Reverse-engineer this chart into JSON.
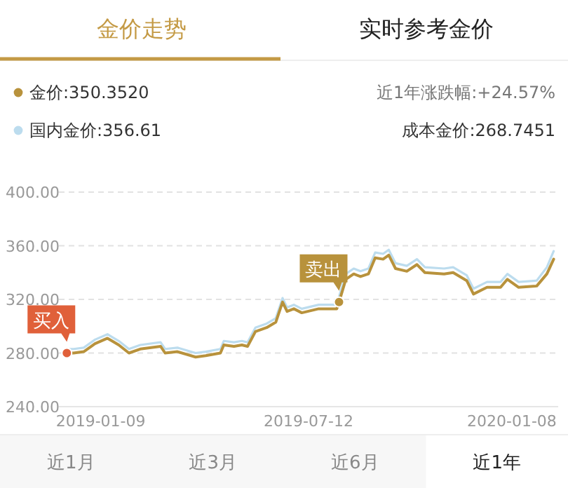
{
  "chart_data": {
    "type": "line",
    "x": [
      "2018-12-10",
      "2018-12-16",
      "2018-12-25",
      "2019-01-04",
      "2019-01-15",
      "2019-01-19",
      "2019-01-25",
      "2019-02-03",
      "2019-02-13",
      "2019-03-03",
      "2019-03-07",
      "2019-03-18",
      "2019-04-03",
      "2019-04-12",
      "2019-04-25",
      "2019-04-28",
      "2019-05-07",
      "2019-05-14",
      "2019-05-19",
      "2019-05-26",
      "2019-06-05",
      "2019-06-13",
      "2019-06-17",
      "2019-06-19",
      "2019-06-23",
      "2019-06-29",
      "2019-07-06",
      "2019-07-21",
      "2019-07-28",
      "2019-08-06",
      "2019-08-08",
      "2019-08-14",
      "2019-08-21",
      "2019-08-27",
      "2019-09-03",
      "2019-09-09",
      "2019-09-16",
      "2019-09-21",
      "2019-09-27",
      "2019-10-07",
      "2019-10-16",
      "2019-10-23",
      "2019-11-09",
      "2019-11-17",
      "2019-11-29",
      "2019-12-05",
      "2019-12-17",
      "2019-12-29",
      "2020-01-04",
      "2020-01-14",
      "2020-01-30",
      "2020-02-08",
      "2020-02-14"
    ],
    "series": [
      {
        "name": "国内金价:356.61",
        "color": "#bcdcee",
        "values": [
          283,
          283,
          284,
          290,
          294,
          292,
          289,
          283,
          286,
          288,
          283,
          284,
          280,
          281,
          283,
          289,
          288,
          289,
          288,
          299,
          302,
          306,
          316,
          321,
          314,
          316,
          313,
          316,
          316,
          316,
          322,
          339,
          343,
          341,
          343,
          355,
          354,
          357,
          347,
          345,
          350,
          344,
          343,
          344,
          338,
          328,
          333,
          333,
          339,
          333,
          334,
          344,
          356
        ]
      },
      {
        "name": "金价:350.3520",
        "color": "#b8923c",
        "values": [
          280,
          280,
          281,
          287,
          291,
          289,
          286,
          280,
          283,
          285,
          280,
          281,
          277,
          278,
          280,
          286,
          285,
          286,
          285,
          296,
          299,
          303,
          313,
          318,
          311,
          313,
          310,
          313,
          313,
          313,
          318,
          335,
          339,
          337,
          339,
          351,
          350,
          353,
          343,
          341,
          346,
          340,
          339,
          340,
          334,
          324,
          329,
          329,
          335,
          329,
          330,
          339,
          350
        ]
      }
    ],
    "xlim": [
      "2018-12-03",
      "2020-02-18"
    ],
    "xticks": [
      {
        "value": "2019-01-09",
        "label": "2019-01-09"
      },
      {
        "value": "2019-07-12",
        "label": "2019-07-12"
      },
      {
        "value": "2020-01-08",
        "label": "2020-01-08"
      }
    ],
    "ylim": [
      240,
      400
    ],
    "yticks": [
      {
        "value": 240,
        "label": "240.00"
      },
      {
        "value": 280,
        "label": "280.00"
      },
      {
        "value": 320,
        "label": "320.00"
      },
      {
        "value": 360,
        "label": "360.00"
      },
      {
        "value": 400,
        "label": "400.00"
      }
    ],
    "grid": "y",
    "legend": "top left",
    "line_style": "solid",
    "marker": "none",
    "annotations": [
      {
        "text": "买入",
        "x": "2018-12-10",
        "y": 280
      },
      {
        "text": "卖出",
        "x": "2019-08-08",
        "y": 318
      },
      "金价走势",
      "实时参考金价",
      "近1年涨跌幅:+24.57%",
      "成本金价:268.7451",
      "近1月",
      "近3月",
      "近6月",
      "近1年"
    ]
  }
}
